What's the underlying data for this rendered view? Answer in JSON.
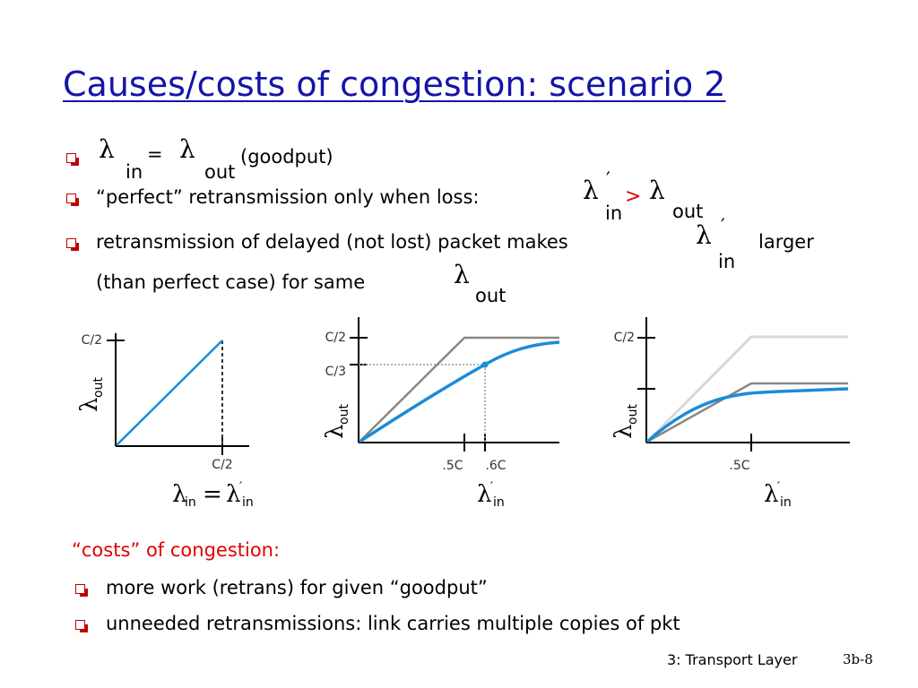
{
  "title": "Causes/costs of congestion: scenario 2",
  "symbols": {
    "lambda": "λ",
    "prime": "′",
    "sub_in": "in",
    "sub_out": "out"
  },
  "bullets": [
    {
      "equals": "=",
      "suffix": "(goodput)"
    },
    {
      "text": "“perfect” retransmission only when loss:",
      "operator": ">"
    },
    {
      "text": "retransmission of delayed (not lost) packet makes",
      "after": "larger",
      "line2": "(than perfect case) for same"
    }
  ],
  "charts": [
    {
      "y_tick": "C/2",
      "x_tick": "C/2",
      "xlabel_equals": "="
    },
    {
      "y_ticks": [
        "C/2",
        "C/3"
      ],
      "x_ticks": [
        ".5C",
        ".6C"
      ]
    },
    {
      "y_tick": "C/2",
      "x_tick": ".5C"
    }
  ],
  "colors": {
    "title": "#1414a8",
    "accent": "#e00000",
    "curve": "#1a8cd8",
    "ideal": "#888888",
    "ideal_light": "#d8d8d8"
  },
  "costs": {
    "heading": "“costs” of congestion:",
    "items": [
      "more work (retrans) for given “goodput”",
      "unneeded retransmissions: link carries multiple copies of pkt"
    ]
  },
  "footer": {
    "text": "3: Transport Layer",
    "slide": "3b-8"
  }
}
